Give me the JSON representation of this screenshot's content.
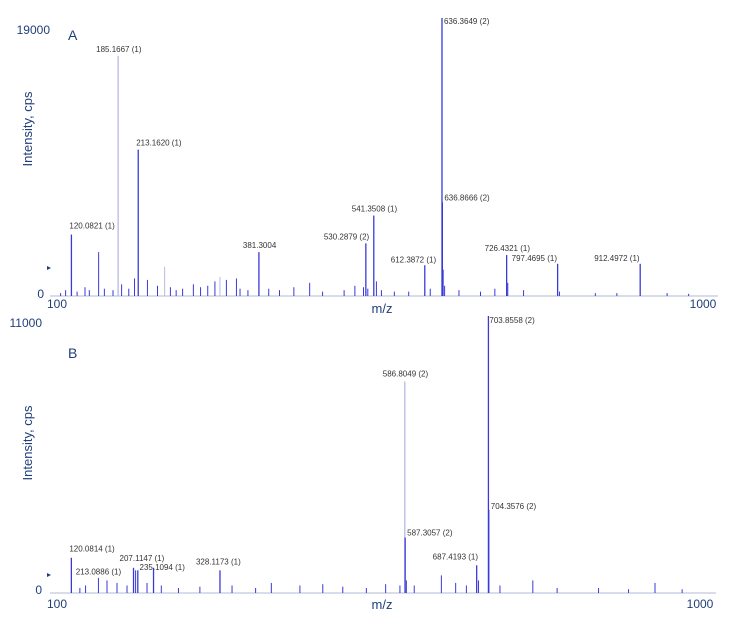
{
  "colors": {
    "axis": "#1f3f7a",
    "peak": "#3a3ad8",
    "peak_faint": "#b9b9e6",
    "label": "#333333",
    "leader": "#555555"
  },
  "chart_data": [
    {
      "type": "bar",
      "panel": "A",
      "xlabel": "m/z",
      "ylabel": "Intensity, cps",
      "xlim": [
        100,
        1000
      ],
      "ylim": [
        0,
        19000
      ],
      "xticks": [
        "100",
        "1000"
      ],
      "yticks": [
        "0",
        "19000"
      ],
      "labeled_peaks": [
        {
          "x": 120.0821,
          "y": 4200,
          "label": "120.0821 (1)"
        },
        {
          "x": 185.1667,
          "y": 16400,
          "label": "185.1667 (1)"
        },
        {
          "x": 213.162,
          "y": 10000,
          "label": "213.1620 (1)"
        },
        {
          "x": 381.3004,
          "y": 3000,
          "label": "381.3004"
        },
        {
          "x": 530.2879,
          "y": 3600,
          "label": "530.2879 (2)"
        },
        {
          "x": 541.3508,
          "y": 5500,
          "label": "541.3508 (1)"
        },
        {
          "x": 612.3872,
          "y": 2100,
          "label": "612.3872 (1)"
        },
        {
          "x": 636.3649,
          "y": 19000,
          "label": "636.3649 (2)"
        },
        {
          "x": 636.8666,
          "y": 6400,
          "label": "636.8666 (2)"
        },
        {
          "x": 726.4321,
          "y": 2800,
          "label": "726.4321 (1)"
        },
        {
          "x": 797.4695,
          "y": 2200,
          "label": "797.4695 (1)"
        },
        {
          "x": 912.4972,
          "y": 2200,
          "label": "912.4972 (1)"
        }
      ],
      "minor_peaks": [
        {
          "x": 105,
          "y": 200
        },
        {
          "x": 112,
          "y": 400
        },
        {
          "x": 128,
          "y": 300
        },
        {
          "x": 139,
          "y": 600
        },
        {
          "x": 145,
          "y": 400
        },
        {
          "x": 158,
          "y": 3000
        },
        {
          "x": 166,
          "y": 500
        },
        {
          "x": 178,
          "y": 400
        },
        {
          "x": 190,
          "y": 800
        },
        {
          "x": 200,
          "y": 500
        },
        {
          "x": 208,
          "y": 1200
        },
        {
          "x": 226,
          "y": 1100
        },
        {
          "x": 240,
          "y": 700
        },
        {
          "x": 250,
          "y": 2000,
          "faint": true
        },
        {
          "x": 258,
          "y": 600
        },
        {
          "x": 266,
          "y": 400
        },
        {
          "x": 275,
          "y": 500
        },
        {
          "x": 290,
          "y": 800
        },
        {
          "x": 300,
          "y": 600
        },
        {
          "x": 310,
          "y": 700
        },
        {
          "x": 320,
          "y": 1000
        },
        {
          "x": 327,
          "y": 1300,
          "faint": true
        },
        {
          "x": 336,
          "y": 1100
        },
        {
          "x": 350,
          "y": 1200
        },
        {
          "x": 355,
          "y": 500
        },
        {
          "x": 366,
          "y": 400
        },
        {
          "x": 395,
          "y": 500
        },
        {
          "x": 410,
          "y": 400
        },
        {
          "x": 430,
          "y": 600
        },
        {
          "x": 452,
          "y": 900
        },
        {
          "x": 470,
          "y": 300
        },
        {
          "x": 500,
          "y": 400
        },
        {
          "x": 515,
          "y": 700
        },
        {
          "x": 527,
          "y": 600
        },
        {
          "x": 533,
          "y": 500
        },
        {
          "x": 545,
          "y": 1000
        },
        {
          "x": 552,
          "y": 400
        },
        {
          "x": 570,
          "y": 300
        },
        {
          "x": 590,
          "y": 300
        },
        {
          "x": 620,
          "y": 500
        },
        {
          "x": 638,
          "y": 1800
        },
        {
          "x": 640,
          "y": 700
        },
        {
          "x": 660,
          "y": 400
        },
        {
          "x": 690,
          "y": 300
        },
        {
          "x": 710,
          "y": 500
        },
        {
          "x": 728,
          "y": 900
        },
        {
          "x": 750,
          "y": 400
        },
        {
          "x": 800,
          "y": 300
        },
        {
          "x": 850,
          "y": 200
        },
        {
          "x": 880,
          "y": 200
        },
        {
          "x": 950,
          "y": 200
        },
        {
          "x": 980,
          "y": 150
        }
      ]
    },
    {
      "type": "bar",
      "panel": "B",
      "xlabel": "m/z",
      "ylabel": "Intensity, cps",
      "xlim": [
        100,
        1000
      ],
      "ylim": [
        0,
        11000
      ],
      "xticks": [
        "100",
        "1000"
      ],
      "yticks": [
        "0",
        "11000"
      ],
      "labeled_peaks": [
        {
          "x": 120.0814,
          "y": 1400,
          "label": "120.0814 (1)"
        },
        {
          "x": 207.1147,
          "y": 1000,
          "label": "207.1147 (1)"
        },
        {
          "x": 213.0886,
          "y": 900,
          "label": "213.0886 (1)"
        },
        {
          "x": 235.1094,
          "y": 1000,
          "label": "235.1094 (1)"
        },
        {
          "x": 328.1173,
          "y": 900,
          "label": "328.1173 (1)"
        },
        {
          "x": 586.8049,
          "y": 8400,
          "label": "586.8049 (2)"
        },
        {
          "x": 587.3057,
          "y": 2200,
          "label": "587.3057 (2)"
        },
        {
          "x": 687.4193,
          "y": 1100,
          "label": "687.4193 (1)"
        },
        {
          "x": 703.8558,
          "y": 11000,
          "label": "703.8558 (2)"
        },
        {
          "x": 704.3576,
          "y": 3300,
          "label": "704.3576 (2)"
        }
      ],
      "minor_peaks": [
        {
          "x": 132,
          "y": 200
        },
        {
          "x": 140,
          "y": 300
        },
        {
          "x": 158,
          "y": 600
        },
        {
          "x": 170,
          "y": 500
        },
        {
          "x": 184,
          "y": 400
        },
        {
          "x": 198,
          "y": 300
        },
        {
          "x": 210,
          "y": 900
        },
        {
          "x": 226,
          "y": 400
        },
        {
          "x": 246,
          "y": 300
        },
        {
          "x": 270,
          "y": 200
        },
        {
          "x": 300,
          "y": 250
        },
        {
          "x": 345,
          "y": 300
        },
        {
          "x": 378,
          "y": 200
        },
        {
          "x": 400,
          "y": 400
        },
        {
          "x": 440,
          "y": 300
        },
        {
          "x": 472,
          "y": 350
        },
        {
          "x": 500,
          "y": 250
        },
        {
          "x": 533,
          "y": 200
        },
        {
          "x": 560,
          "y": 350
        },
        {
          "x": 580,
          "y": 300
        },
        {
          "x": 589,
          "y": 500
        },
        {
          "x": 600,
          "y": 300
        },
        {
          "x": 638,
          "y": 700
        },
        {
          "x": 658,
          "y": 400
        },
        {
          "x": 673,
          "y": 300
        },
        {
          "x": 690,
          "y": 500
        },
        {
          "x": 720,
          "y": 300
        },
        {
          "x": 766,
          "y": 500
        },
        {
          "x": 800,
          "y": 200
        },
        {
          "x": 858,
          "y": 200
        },
        {
          "x": 900,
          "y": 150
        },
        {
          "x": 937,
          "y": 400
        },
        {
          "x": 975,
          "y": 150
        }
      ]
    }
  ]
}
